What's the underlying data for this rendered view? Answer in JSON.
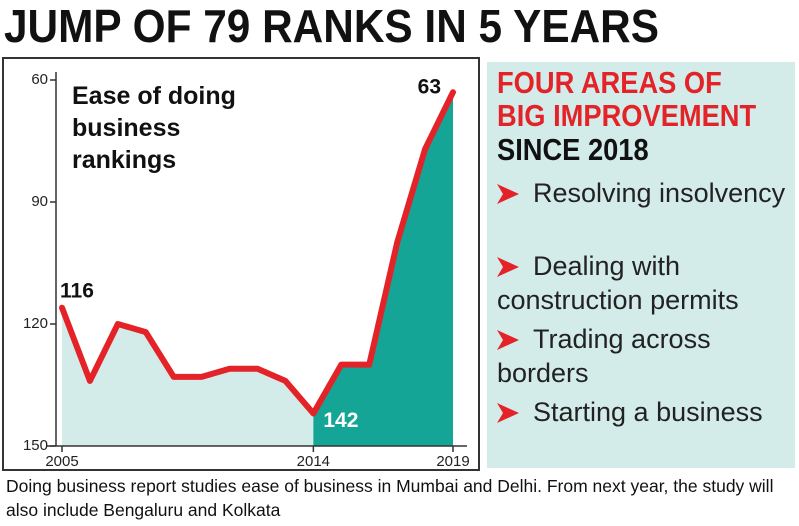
{
  "title": "JUMP OF 79 RANKS IN 5 YEARS",
  "chart_data": {
    "type": "area-line",
    "title": "Ease of doing business rankings",
    "x": [
      2005,
      2006,
      2007,
      2008,
      2009,
      2010,
      2011,
      2012,
      2013,
      2014,
      2015,
      2016,
      2017,
      2018,
      2019
    ],
    "values": [
      116,
      134,
      120,
      122,
      133,
      133,
      131,
      131,
      134,
      142,
      130,
      130,
      100,
      77,
      63
    ],
    "value_labels": [
      "116",
      null,
      null,
      null,
      null,
      null,
      null,
      null,
      null,
      "142",
      null,
      null,
      null,
      null,
      "63"
    ],
    "color": "#e42328",
    "fill_color": "#d3ecea",
    "highlight_color": "#15a596",
    "highlight_from": 2014,
    "xlim": [
      2005,
      2019
    ],
    "xticks": [
      2005,
      2014,
      2019
    ],
    "ylim": [
      60,
      150
    ],
    "yticks": [
      60,
      90,
      120,
      150
    ],
    "y_inverted": true
  },
  "panel": {
    "title": "FOUR AREAS OF BIG IMPROVEMENT",
    "subtitle": "SINCE 2018",
    "items": [
      "Resolving insolvency",
      "Dealing with construction permits",
      "Trading across borders",
      "Starting a business"
    ]
  },
  "footer": {
    "note": "Doing business report studies ease of business in Mumbai and Delhi. From next year, the study will also include Bengaluru and Kolkata"
  }
}
